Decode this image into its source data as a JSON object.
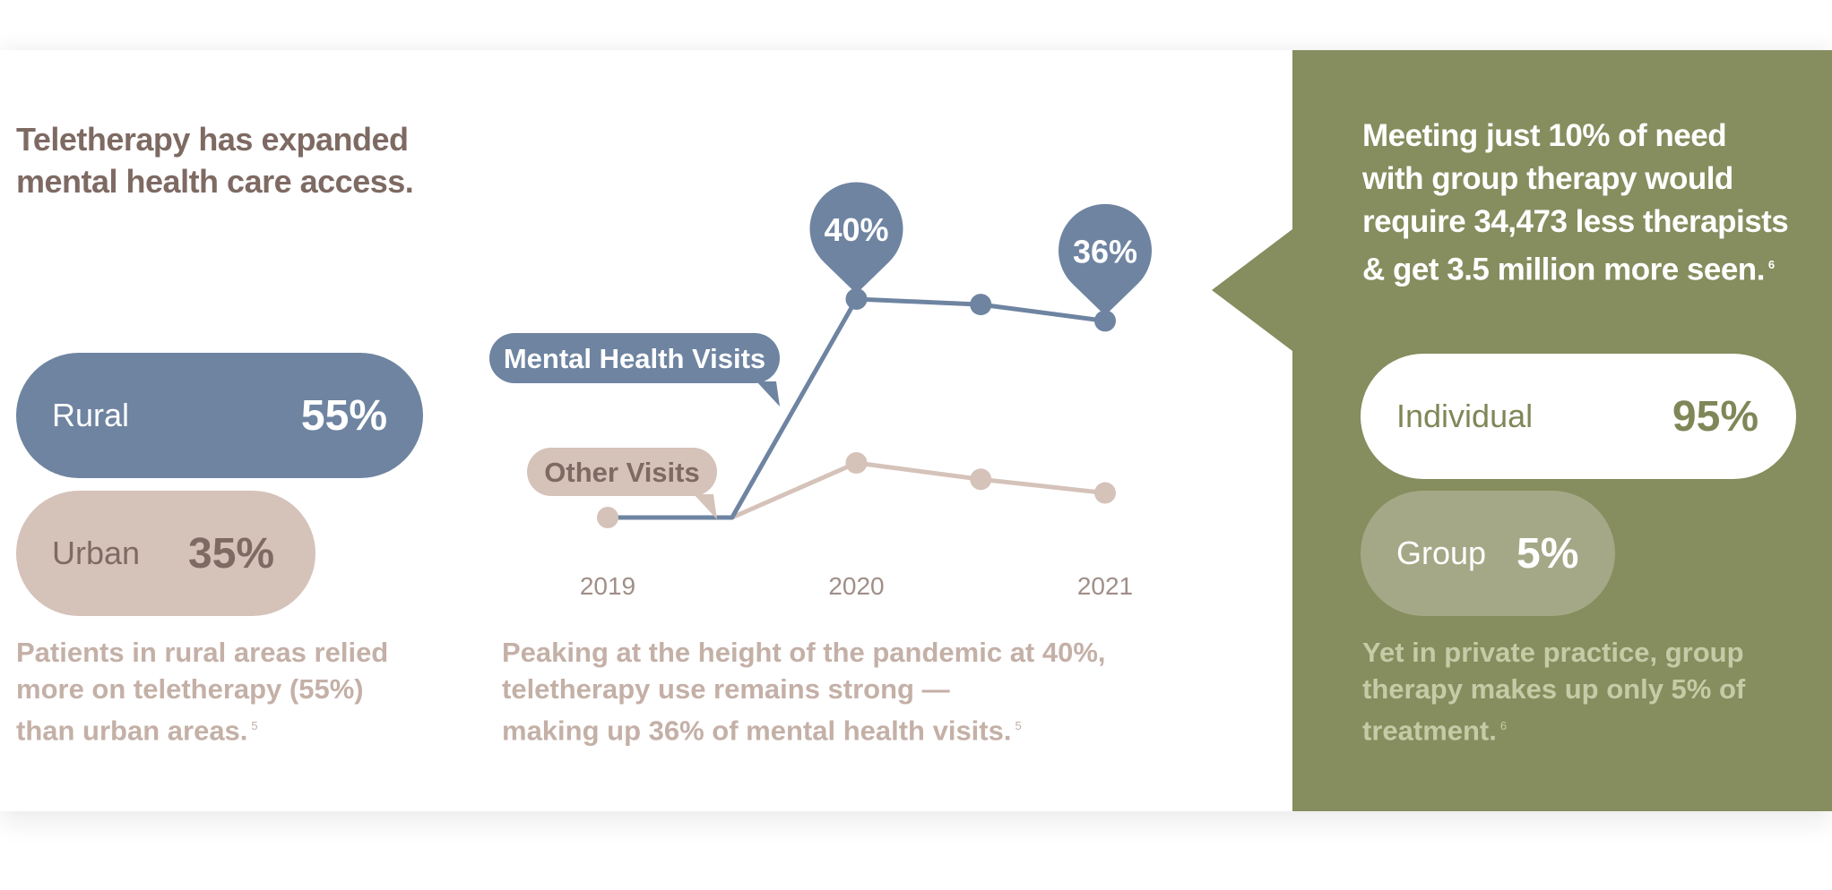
{
  "left": {
    "headline_line1": "Teletherapy has expanded",
    "headline_line2": "mental health care access.",
    "rural_label": "Rural",
    "rural_value": "55%",
    "urban_label": "Urban",
    "urban_value": "35%",
    "caption_line1": "Patients in rural areas relied",
    "caption_line2": "more on teletherapy (55%)",
    "caption_line3": "than urban areas.",
    "caption_footnote": "5"
  },
  "middle": {
    "caption_line1": "Peaking at the height of the pandemic at 40%,",
    "caption_line2": "teletherapy use remains strong —",
    "caption_line3": "making up 36% of mental health visits.",
    "caption_footnote": "5"
  },
  "right": {
    "title_line1": "Meeting just 10% of need",
    "title_line2": "with group therapy would",
    "title_line3": "require 34,473 less therapists",
    "title_line4": "& get 3.5 million more seen.",
    "title_footnote": "6",
    "individual_label": "Individual",
    "individual_value": "95%",
    "group_label": "Group",
    "group_value": "5%",
    "caption_line1": "Yet in private practice, group",
    "caption_line2": "therapy makes up only 5% of",
    "caption_line3": "treatment.",
    "caption_footnote": "6"
  },
  "colors": {
    "blue": "#6e84a1",
    "tan": "#d5c2b9",
    "brown_text": "#7e6a63",
    "olive": "#868d5e",
    "axis_text": "#9f8f88"
  },
  "chart_data": {
    "type": "line",
    "x": [
      2019,
      2019.5,
      2020,
      2020.5,
      2021
    ],
    "x_tick_labels": [
      "2019",
      "2020",
      "2021"
    ],
    "series": [
      {
        "name": "Mental Health Visits",
        "values": [
          0,
          0,
          40,
          39,
          36
        ],
        "color": "#6e84a1",
        "marker_indices": [
          2,
          3,
          4
        ]
      },
      {
        "name": "Other Visits",
        "values": [
          0,
          0,
          10,
          7,
          4.5
        ],
        "color": "#d5c2b9",
        "marker_indices": [
          0,
          2,
          3,
          4
        ]
      }
    ],
    "callouts": [
      {
        "series": 0,
        "point": 2,
        "text": "40%"
      },
      {
        "series": 0,
        "point": 4,
        "text": "36%"
      }
    ],
    "ylim": [
      0,
      40
    ],
    "grid": false
  }
}
